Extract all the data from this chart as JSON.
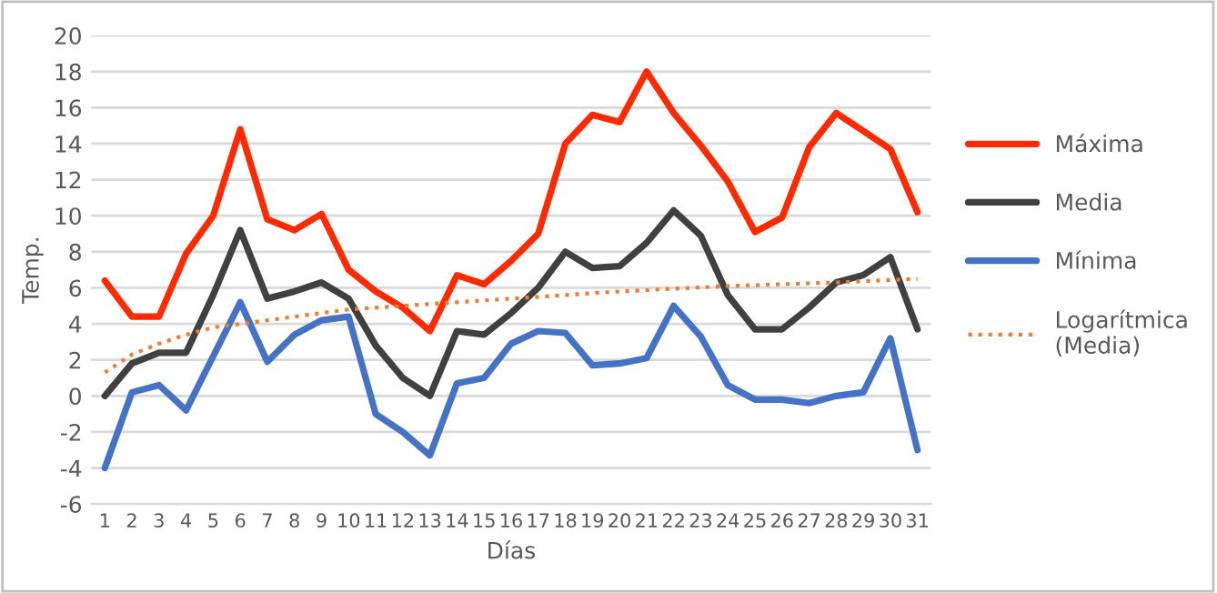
{
  "chart_data": {
    "type": "line",
    "xlabel": "Días",
    "ylabel": "Temp.",
    "x": [
      1,
      2,
      3,
      4,
      5,
      6,
      7,
      8,
      9,
      10,
      11,
      12,
      13,
      14,
      15,
      16,
      17,
      18,
      19,
      20,
      21,
      22,
      23,
      24,
      25,
      26,
      27,
      28,
      29,
      30,
      31
    ],
    "xlim": [
      0.5,
      31.5
    ],
    "xticks": [
      1,
      2,
      3,
      4,
      5,
      6,
      7,
      8,
      9,
      10,
      11,
      12,
      13,
      14,
      15,
      16,
      17,
      18,
      19,
      20,
      21,
      22,
      23,
      24,
      25,
      26,
      27,
      28,
      29,
      30,
      31
    ],
    "ylim": [
      -6,
      20
    ],
    "yticks": [
      -6,
      -4,
      -2,
      0,
      2,
      4,
      6,
      8,
      10,
      12,
      14,
      16,
      18,
      20
    ],
    "grid": "y",
    "legend": "right",
    "series": [
      {
        "name": "Máxima",
        "color": "#ff2a00",
        "values": [
          6.4,
          4.4,
          4.4,
          7.9,
          10,
          14.8,
          9.8,
          9.2,
          10.1,
          7,
          5.8,
          4.9,
          3.6,
          6.7,
          6.2,
          7.5,
          9,
          14,
          15.6,
          15.2,
          18,
          15.7,
          13.9,
          11.9,
          9.1,
          9.9,
          13.8,
          15.7,
          14.7,
          13.7,
          10.2
        ]
      },
      {
        "name": "Media",
        "color": "#404040",
        "values": [
          0,
          1.8,
          2.4,
          2.4,
          5.6,
          9.2,
          5.4,
          5.8,
          6.3,
          5.4,
          2.8,
          1,
          0,
          3.6,
          3.4,
          4.6,
          6,
          8,
          7.1,
          7.2,
          8.5,
          10.3,
          8.9,
          5.6,
          3.7,
          3.7,
          4.9,
          6.3,
          6.7,
          7.7,
          3.7
        ]
      },
      {
        "name": "Mínima",
        "color": "#4472c4",
        "values": [
          -4,
          0.2,
          0.6,
          -0.8,
          2.2,
          5.2,
          1.9,
          3.4,
          4.2,
          4.4,
          -1,
          -2,
          -3.3,
          0.7,
          1,
          2.9,
          3.6,
          3.5,
          1.7,
          1.8,
          2.1,
          5,
          3.3,
          0.6,
          -0.2,
          -0.2,
          -0.4,
          0,
          0.2,
          3.2,
          -3
        ]
      },
      {
        "name": "Logarítmica\n(Media)",
        "color": "#ed7d31",
        "line_style": "dotted",
        "x": [
          1,
          2,
          3,
          4,
          5,
          6,
          8,
          10,
          13,
          16,
          20,
          24,
          28,
          31
        ],
        "values": [
          1.3,
          2.3,
          2.9,
          3.4,
          3.8,
          4.0,
          4.4,
          4.8,
          5.1,
          5.4,
          5.8,
          6.1,
          6.3,
          6.5
        ]
      }
    ]
  }
}
